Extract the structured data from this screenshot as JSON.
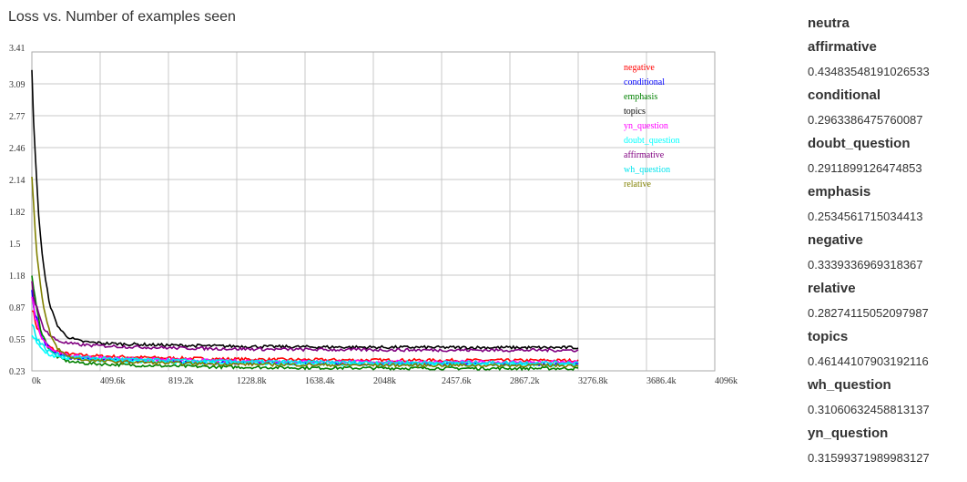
{
  "title": "Loss vs. Number of examples seen",
  "panel": {
    "heading": "neutra",
    "items": [
      {
        "label": "affirmative",
        "value": "0.43483548191026533"
      },
      {
        "label": "conditional",
        "value": "0.2963386475760087"
      },
      {
        "label": "doubt_question",
        "value": "0.2911899126474853"
      },
      {
        "label": "emphasis",
        "value": "0.2534561715034413"
      },
      {
        "label": "negative",
        "value": "0.3339336969318367"
      },
      {
        "label": "relative",
        "value": "0.28274115052097987"
      },
      {
        "label": "topics",
        "value": "0.46144107903192116"
      },
      {
        "label": "wh_question",
        "value": "0.31060632458813137"
      },
      {
        "label": "yn_question",
        "value": "0.31599371989983127"
      }
    ]
  },
  "chart_data": {
    "type": "line",
    "title": "Loss vs. Number of examples seen",
    "xlabel": "",
    "ylabel": "",
    "x_ticks": [
      "0k",
      "409.6k",
      "819.2k",
      "1228.8k",
      "1638.4k",
      "2048k",
      "2457.6k",
      "2867.2k",
      "3276.8k",
      "3686.4k",
      "4096k"
    ],
    "y_ticks": [
      "3.41",
      "3.09",
      "2.77",
      "2.46",
      "2.14",
      "1.82",
      "1.5",
      "1.18",
      "0.87",
      "0.55",
      "0.23"
    ],
    "xlim": [
      0,
      4096000
    ],
    "ylim": [
      0.23,
      3.41
    ],
    "grid": true,
    "legend_position": "top-right",
    "x_end": 3276800,
    "series": [
      {
        "name": "negative",
        "color": "#ff0000",
        "start": 0.87,
        "plateau": 0.333
      },
      {
        "name": "conditional",
        "color": "#0000ff",
        "start": 1.0,
        "plateau": 0.296
      },
      {
        "name": "emphasis",
        "color": "#008000",
        "start": 1.2,
        "plateau": 0.253
      },
      {
        "name": "topics",
        "color": "#000000",
        "start": 3.2,
        "plateau": 0.461
      },
      {
        "name": "yn_question",
        "color": "#ff00ff",
        "start": 0.95,
        "plateau": 0.316
      },
      {
        "name": "doubt_question",
        "color": "#00ffff",
        "start": 0.6,
        "plateau": 0.291
      },
      {
        "name": "affirmative",
        "color": "#800080",
        "start": 1.1,
        "plateau": 0.435
      },
      {
        "name": "wh_question",
        "color": "#00e5ee",
        "start": 0.7,
        "plateau": 0.311
      },
      {
        "name": "relative",
        "color": "#808000",
        "start": 2.2,
        "plateau": 0.283
      }
    ]
  }
}
